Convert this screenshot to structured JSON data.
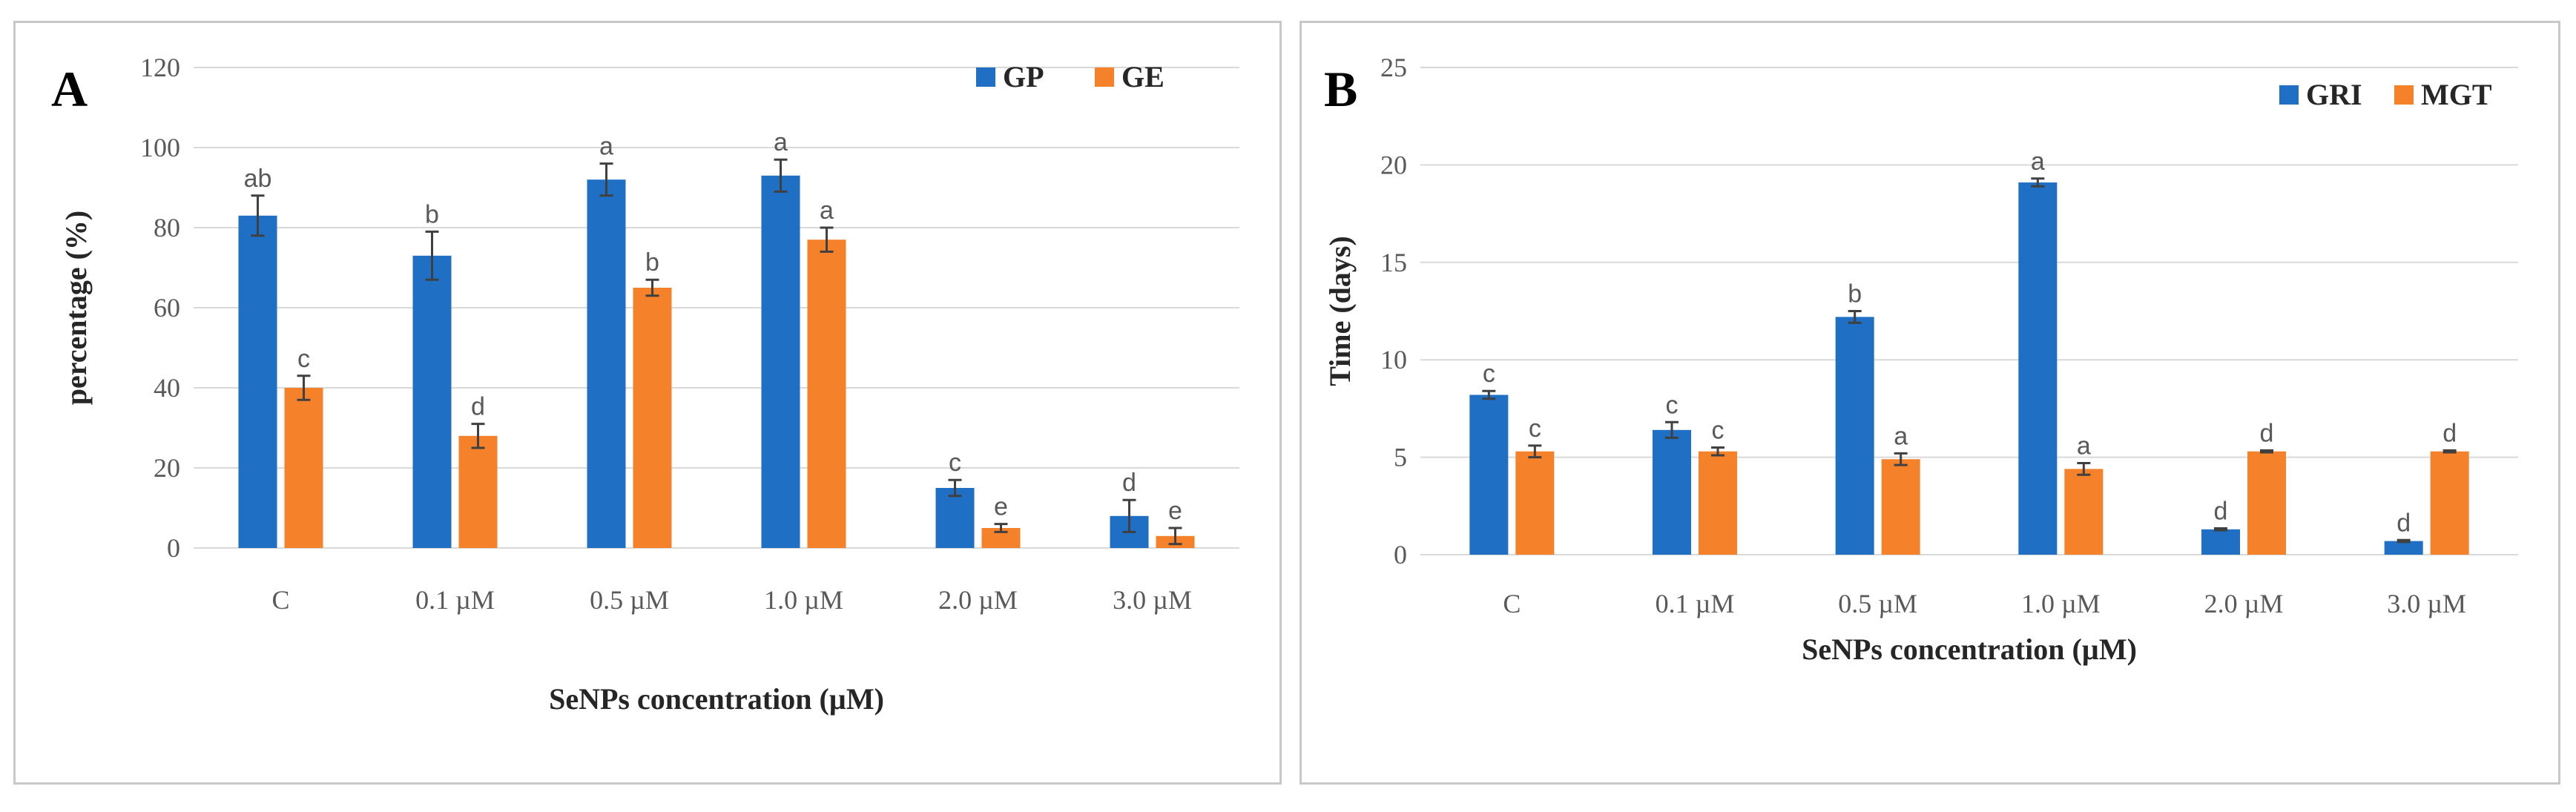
{
  "colors": {
    "series1": "#1f6fc5",
    "series2": "#f5822a"
  },
  "chart_data": [
    {
      "type": "bar",
      "panel_label": "A",
      "xlabel": "SeNPs concentration (µM)",
      "ylabel": "percentage (%)",
      "ylim": [
        0,
        120
      ],
      "yticks": [
        0,
        20,
        40,
        60,
        80,
        100,
        120
      ],
      "grid": true,
      "legend_position": "top-right",
      "categories": [
        "C",
        "0.1 µM",
        "0.5 µM",
        "1.0 µM",
        "2.0 µM",
        "3.0 µM"
      ],
      "series": [
        {
          "name": "GP",
          "values": [
            83,
            73,
            92,
            93,
            15,
            8
          ],
          "errors": [
            5,
            6,
            4,
            4,
            2,
            4
          ],
          "letters": [
            "ab",
            "b",
            "a",
            "a",
            "c",
            "d"
          ]
        },
        {
          "name": "GE",
          "values": [
            40,
            28,
            65,
            77,
            5,
            3
          ],
          "errors": [
            3,
            3,
            2,
            3,
            1,
            2
          ],
          "letters": [
            "c",
            "d",
            "b",
            "a",
            "e",
            "e"
          ]
        }
      ]
    },
    {
      "type": "bar",
      "panel_label": "B",
      "xlabel": "SeNPs concentration (µM)",
      "ylabel": "Time (days)",
      "ylim": [
        0,
        25
      ],
      "yticks": [
        0,
        5,
        10,
        15,
        20,
        25
      ],
      "grid": true,
      "legend_position": "top-right",
      "categories": [
        "C",
        "0.1 µM",
        "0.5 µM",
        "1.0 µM",
        "2.0 µM",
        "3.0 µM"
      ],
      "series": [
        {
          "name": "GRI",
          "values": [
            8.2,
            6.4,
            12.2,
            19.1,
            1.3,
            0.7
          ],
          "errors": [
            0.2,
            0.4,
            0.3,
            0.2,
            0.05,
            0.05
          ],
          "letters": [
            "c",
            "c",
            "b",
            "a",
            "d",
            "d"
          ]
        },
        {
          "name": "MGT",
          "values": [
            5.3,
            5.3,
            4.9,
            4.4,
            5.3,
            5.3
          ],
          "errors": [
            0.3,
            0.2,
            0.3,
            0.3,
            0.05,
            0.05
          ],
          "letters": [
            "c",
            "c",
            "a",
            "a",
            "d",
            "d"
          ]
        }
      ]
    }
  ]
}
